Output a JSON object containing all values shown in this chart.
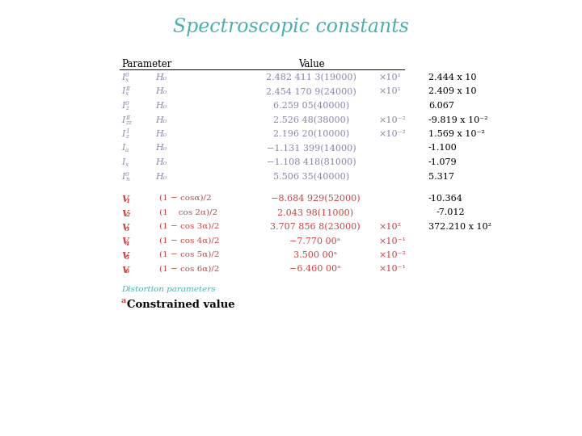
{
  "title": "Spectroscopic constants",
  "title_color": "#4AAFAF",
  "bg_color": "#ffffff",
  "gray_blue": "#8888AA",
  "red_color": "#CC4444",
  "teal_color": "#4AAFAF",
  "black": "#000000",
  "figsize": [
    7.2,
    5.4
  ],
  "dpi": 100,
  "table_rows_black": [
    {
      "p1": "I",
      "p1_sup": "0",
      "p1_sub": "x",
      "p2": "H₀",
      "val": "2.482 411 3(19000)",
      "exp": "×10¹",
      "res": "2.444 x 10"
    },
    {
      "p1": "I",
      "p1_sup": "II",
      "p1_sub": "x",
      "p2": "H₀",
      "val": "2.454 170 9(24000)",
      "exp": "×10¹",
      "res": "2.409 x 10"
    },
    {
      "p1": "I",
      "p1_sup": "0",
      "p1_sub": "z",
      "p2": "H₀",
      "val": "6.259 05(40000)",
      "exp": "",
      "res": "6.067"
    },
    {
      "p1": "I",
      "p1_sup": "II",
      "p1_sub": "zz",
      "p2": "H₀",
      "val": "2.526 48(38000)",
      "exp": "×10⁻²",
      "res": "-9.819 x 10⁻²"
    },
    {
      "p1": "I",
      "p1_sup": "1",
      "p1_sub": "z",
      "p2": "H₀",
      "val": "2.196 20(10000)",
      "exp": "×10⁻²",
      "res": "1.569 x 10⁻²"
    },
    {
      "p1": "I",
      "p1_sup": "",
      "p1_sub": "a",
      "p2": "H₀",
      "val": "−1.131 399(14000)",
      "exp": "",
      "res": "-1.100"
    },
    {
      "p1": "I",
      "p1_sup": "",
      "p1_sub": "x",
      "p2": "H₀",
      "val": "−1.108 418(81000)",
      "exp": "",
      "res": "-1.079"
    },
    {
      "p1": "I",
      "p1_sup": "0",
      "p1_sub": "n",
      "p2": "H₀",
      "val": "5.506 35(40000)",
      "exp": "",
      "res": "5.317"
    }
  ],
  "table_rows_red": [
    {
      "p1": "V",
      "p1_sub": "1",
      "expr": "(1 − cosα)/2",
      "val": "−8.684 929(52000)",
      "exp": "",
      "res": "-10.364"
    },
    {
      "p1": "V",
      "p1_sub": "2",
      "expr": "(1    cos 2α)/2",
      "val": "2.043 98(11000)",
      "exp": "",
      "res": "-7.012"
    },
    {
      "p1": "V",
      "p1_sub": "3",
      "expr": "(1 − cos 3α)/2",
      "val": "3.707 856 8(23000)",
      "exp": "×10²",
      "res": "372.210 x 10²"
    },
    {
      "p1": "V",
      "p1_sub": "4",
      "expr": "(1 − cos 4α)/2",
      "val": "−7.770 00ᵃ",
      "exp": "×10⁻¹",
      "res": ""
    },
    {
      "p1": "V",
      "p1_sub": "5",
      "expr": "(1 − cos 5α)/2",
      "val": "3.500 00ᵃ",
      "exp": "×10⁻²",
      "res": ""
    },
    {
      "p1": "V",
      "p1_sub": "6",
      "expr": "(1 − cos 6α)/2",
      "val": "−6.460 00ᵃ",
      "exp": "×10⁻¹",
      "res": ""
    }
  ],
  "distortion_label": "Distortion parameters",
  "footnote_super": "a",
  "footnote_text": "Constrained value"
}
